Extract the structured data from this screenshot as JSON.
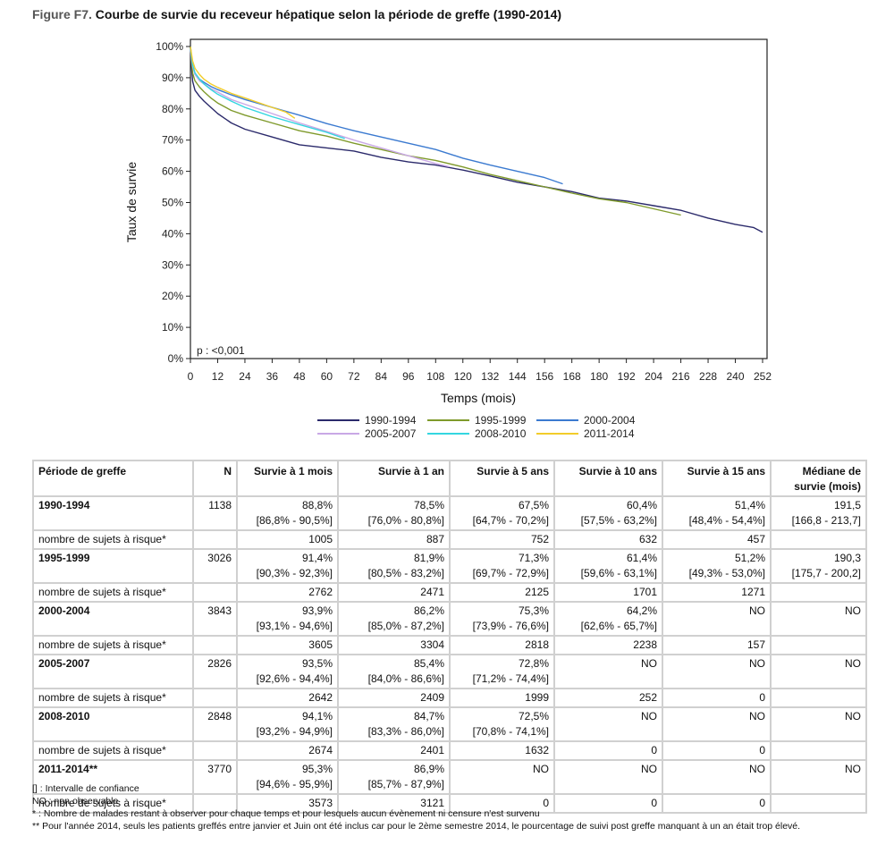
{
  "figure": {
    "number_label": "Figure F7.",
    "title": "Courbe de survie du receveur hépatique selon la période de greffe (1990-2014)"
  },
  "chart_data": {
    "type": "line",
    "title": "Courbe de survie du receveur hépatique selon la période de greffe (1990-2014)",
    "xlabel": "Temps (mois)",
    "ylabel": "Taux de survie",
    "xlim": [
      0,
      252
    ],
    "ylim": [
      0,
      100
    ],
    "x_ticks": [
      0,
      12,
      24,
      36,
      48,
      60,
      72,
      84,
      96,
      108,
      120,
      132,
      144,
      156,
      168,
      180,
      192,
      204,
      216,
      228,
      240,
      252
    ],
    "y_ticks": [
      "0%",
      "10%",
      "20%",
      "30%",
      "40%",
      "50%",
      "60%",
      "70%",
      "80%",
      "90%",
      "100%"
    ],
    "y_tick_values": [
      0,
      10,
      20,
      30,
      40,
      50,
      60,
      70,
      80,
      90,
      100
    ],
    "grid": false,
    "legend_position": "bottom",
    "annotation": "p : <0,001",
    "series": [
      {
        "name": "1990-1994",
        "color": "#2b2a6b",
        "x": [
          0,
          0.5,
          1,
          2,
          4,
          6,
          9,
          12,
          18,
          24,
          36,
          48,
          60,
          72,
          84,
          96,
          108,
          120,
          132,
          144,
          156,
          168,
          180,
          192,
          204,
          216,
          228,
          240,
          248,
          252
        ],
        "y": [
          100,
          93,
          88.8,
          86,
          84,
          82.5,
          80.5,
          78.5,
          75.5,
          73.5,
          71,
          68.5,
          67.5,
          66.5,
          64.5,
          63,
          62,
          60.4,
          58.5,
          56.5,
          55,
          53.5,
          51.4,
          50.5,
          49,
          47.5,
          45,
          43,
          42,
          40.5
        ]
      },
      {
        "name": "1995-1999",
        "color": "#7f9a2b",
        "x": [
          0,
          0.5,
          1,
          2,
          4,
          6,
          9,
          12,
          18,
          24,
          36,
          48,
          60,
          72,
          84,
          96,
          108,
          120,
          132,
          144,
          156,
          168,
          180,
          192,
          204,
          216
        ],
        "y": [
          100,
          95,
          91.4,
          89,
          87,
          85.5,
          83.5,
          81.9,
          79.5,
          78,
          75.5,
          73,
          71.3,
          69,
          67,
          65,
          63.5,
          61.4,
          59,
          57,
          55,
          53,
          51.2,
          50,
          48,
          46
        ]
      },
      {
        "name": "2000-2004",
        "color": "#3b7ad0",
        "x": [
          0,
          0.5,
          1,
          2,
          4,
          6,
          9,
          12,
          18,
          24,
          36,
          48,
          60,
          72,
          84,
          96,
          108,
          120,
          132,
          144,
          156,
          164
        ],
        "y": [
          100,
          96.5,
          93.9,
          91.5,
          89.5,
          88.5,
          87.2,
          86.2,
          84.5,
          83,
          80.5,
          78,
          75.3,
          73,
          71,
          69,
          67,
          64.2,
          62,
          60,
          58,
          56
        ]
      },
      {
        "name": "2005-2007",
        "color": "#c9a8e6",
        "x": [
          0,
          0.5,
          1,
          2,
          4,
          6,
          9,
          12,
          18,
          24,
          36,
          48,
          60,
          72,
          84,
          96,
          108,
          114
        ],
        "y": [
          100,
          96,
          93.5,
          91,
          89,
          88,
          86.5,
          85.4,
          83,
          81.5,
          78.5,
          75.5,
          72.8,
          70,
          67.5,
          65,
          62.5,
          61.5
        ]
      },
      {
        "name": "2008-2010",
        "color": "#33d6e0",
        "x": [
          0,
          0.5,
          1,
          2,
          4,
          6,
          9,
          12,
          18,
          24,
          36,
          48,
          60,
          68
        ],
        "y": [
          100,
          96.5,
          94.1,
          91.5,
          89.5,
          88,
          86.2,
          84.7,
          82.5,
          80.5,
          77.5,
          75,
          72.5,
          70.5
        ]
      },
      {
        "name": "2011-2014",
        "color": "#f2cc2a",
        "x": [
          0,
          0.5,
          1,
          2,
          4,
          6,
          9,
          12,
          18,
          24,
          30,
          36,
          42,
          46
        ],
        "y": [
          100,
          97.5,
          95.3,
          93,
          91,
          89.5,
          88,
          86.9,
          85,
          83.5,
          82,
          80.5,
          79,
          77
        ]
      }
    ]
  },
  "table": {
    "headers": [
      "Période de greffe",
      "N",
      "Survie à 1 mois",
      "Survie à 1 an",
      "Survie à 5 ans",
      "Survie à 10 ans",
      "Survie à 15 ans",
      "Médiane de survie (mois)"
    ],
    "risk_label": "nombre de sujets à risque*",
    "rows": [
      {
        "period": "1990-1994",
        "n": "1138",
        "values": [
          "88,8%",
          "78,5%",
          "67,5%",
          "60,4%",
          "51,4%",
          "191,5"
        ],
        "ci": [
          "[86,8% - 90,5%]",
          "[76,0% - 80,8%]",
          "[64,7% - 70,2%]",
          "[57,5% - 63,2%]",
          "[48,4% - 54,4%]",
          "[166,8 - 213,7]"
        ],
        "at_risk": [
          "1005",
          "887",
          "752",
          "632",
          "457",
          ""
        ]
      },
      {
        "period": "1995-1999",
        "n": "3026",
        "values": [
          "91,4%",
          "81,9%",
          "71,3%",
          "61,4%",
          "51,2%",
          "190,3"
        ],
        "ci": [
          "[90,3% - 92,3%]",
          "[80,5% - 83,2%]",
          "[69,7% - 72,9%]",
          "[59,6% - 63,1%]",
          "[49,3% - 53,0%]",
          "[175,7 - 200,2]"
        ],
        "at_risk": [
          "2762",
          "2471",
          "2125",
          "1701",
          "1271",
          ""
        ]
      },
      {
        "period": "2000-2004",
        "n": "3843",
        "values": [
          "93,9%",
          "86,2%",
          "75,3%",
          "64,2%",
          "NO",
          "NO"
        ],
        "ci": [
          "[93,1% - 94,6%]",
          "[85,0% - 87,2%]",
          "[73,9% - 76,6%]",
          "[62,6% - 65,7%]",
          "",
          ""
        ],
        "at_risk": [
          "3605",
          "3304",
          "2818",
          "2238",
          "157",
          ""
        ]
      },
      {
        "period": "2005-2007",
        "n": "2826",
        "values": [
          "93,5%",
          "85,4%",
          "72,8%",
          "NO",
          "NO",
          "NO"
        ],
        "ci": [
          "[92,6% - 94,4%]",
          "[84,0% - 86,6%]",
          "[71,2% - 74,4%]",
          "",
          "",
          ""
        ],
        "at_risk": [
          "2642",
          "2409",
          "1999",
          "252",
          "0",
          ""
        ]
      },
      {
        "period": "2008-2010",
        "n": "2848",
        "values": [
          "94,1%",
          "84,7%",
          "72,5%",
          "NO",
          "NO",
          "NO"
        ],
        "ci": [
          "[93,2% - 94,9%]",
          "[83,3% - 86,0%]",
          "[70,8% - 74,1%]",
          "",
          "",
          ""
        ],
        "at_risk": [
          "2674",
          "2401",
          "1632",
          "0",
          "0",
          ""
        ]
      },
      {
        "period": "2011-2014**",
        "n": "3770",
        "values": [
          "95,3%",
          "86,9%",
          "NO",
          "NO",
          "NO",
          "NO"
        ],
        "ci": [
          "[94,6% - 95,9%]",
          "[85,7% - 87,9%]",
          "",
          "",
          "",
          ""
        ],
        "at_risk": [
          "3573",
          "3121",
          "0",
          "0",
          "0",
          ""
        ]
      }
    ]
  },
  "notes": [
    "[] : Intervalle de confiance",
    "NO : non observable",
    "* : Nombre de malades restant à observer pour chaque temps et pour lesquels aucun évènement ni censure n'est survenu",
    "** Pour l'année 2014, seuls les patients greffés entre janvier et Juin ont été inclus car pour le 2ème semestre 2014, le pourcentage de suivi post greffe manquant à un an était trop élevé."
  ]
}
